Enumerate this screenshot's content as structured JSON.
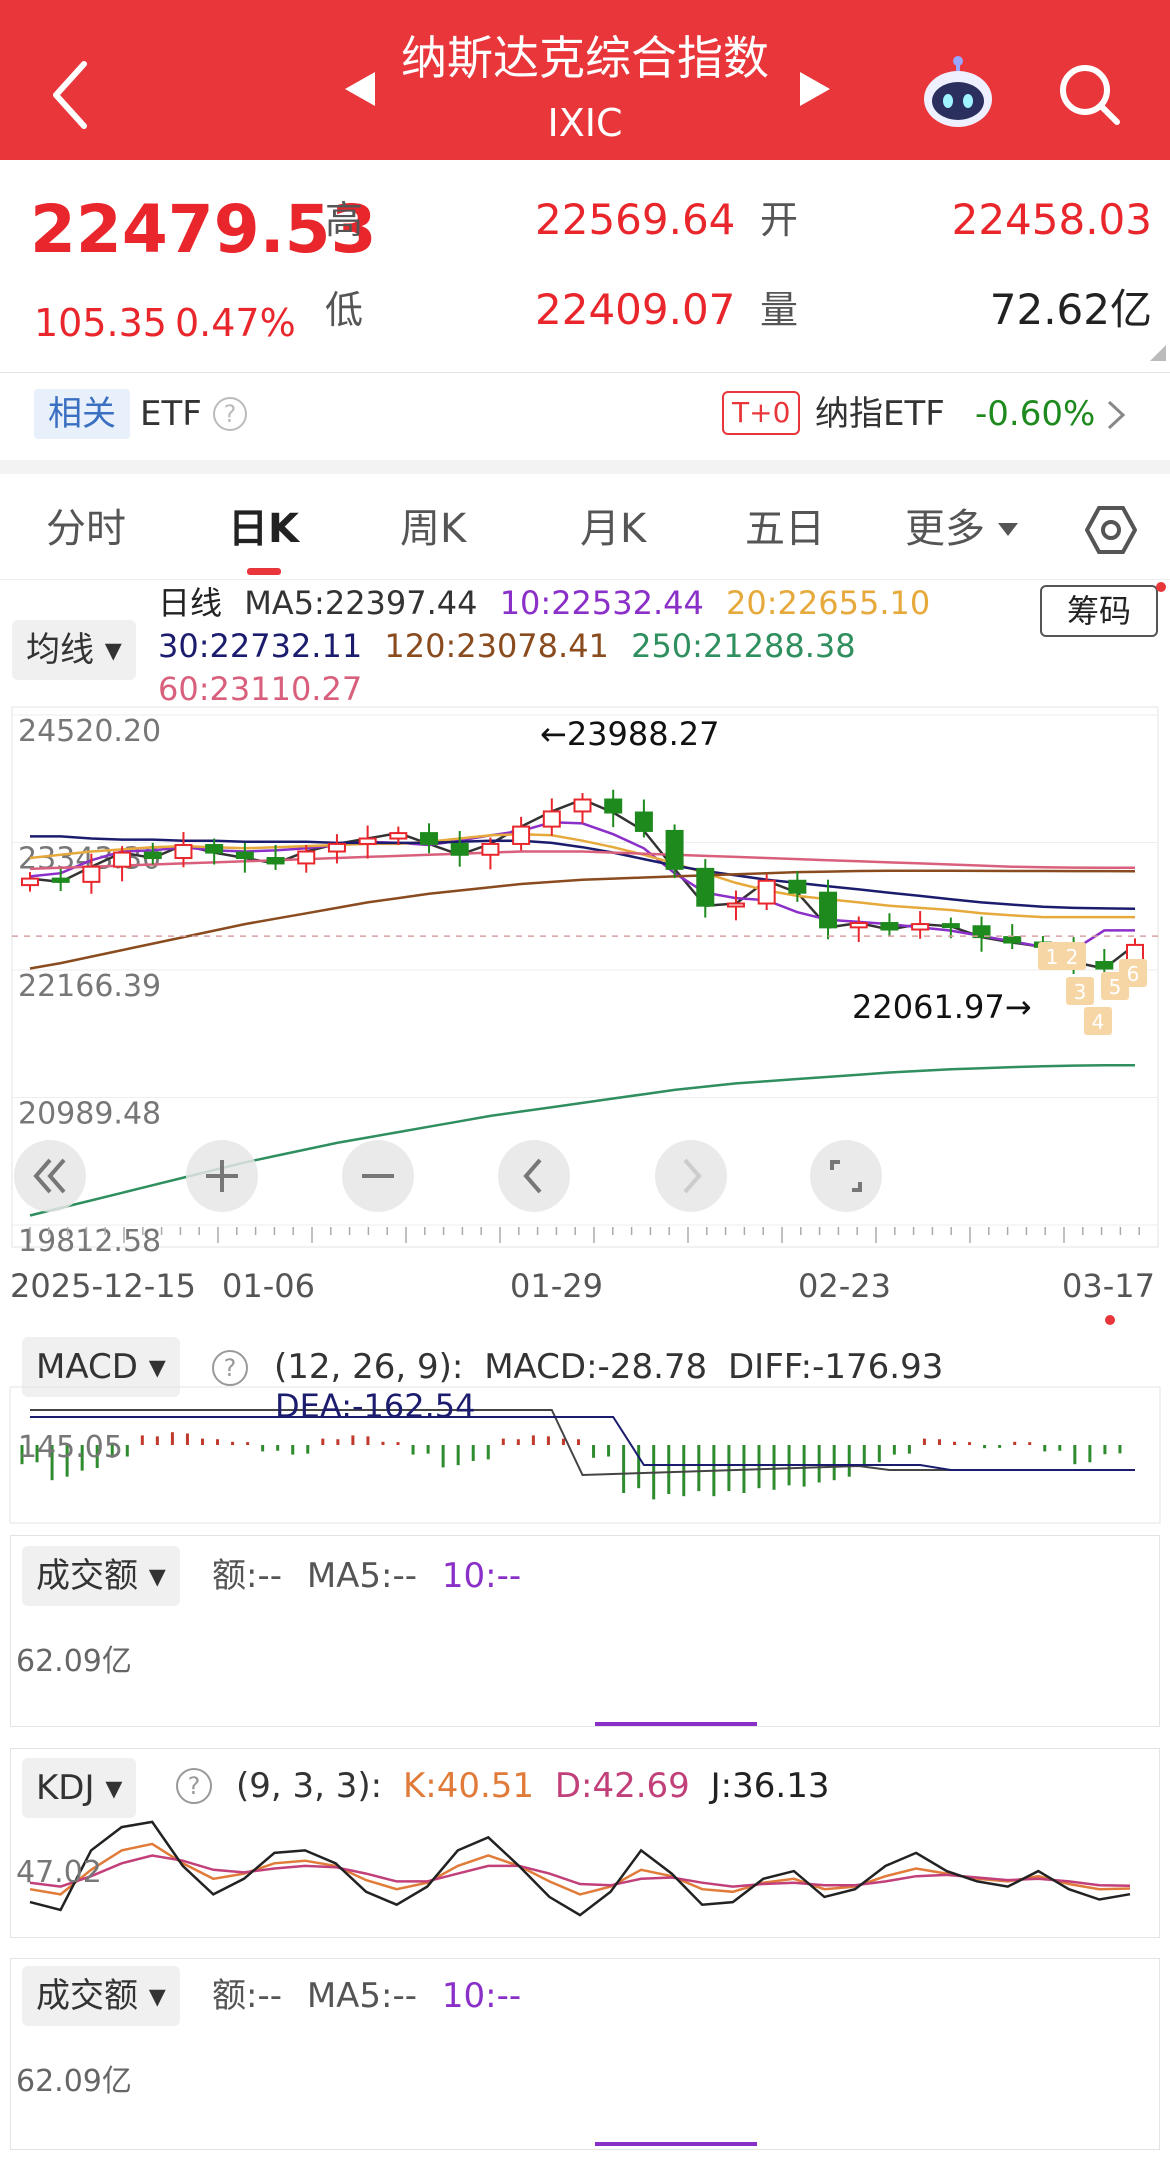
{
  "header": {
    "title": "纳斯达克综合指数",
    "subtitle": "IXIC",
    "back_icon": "chevron-left-icon",
    "robot_icon": "robot-icon",
    "search_icon": "search-icon"
  },
  "quote": {
    "price": "22479.53",
    "change": "105.35",
    "change_pct": "0.47%",
    "high_label": "高",
    "high": "22569.64",
    "open_label": "开",
    "open": "22458.03",
    "low_label": "低",
    "low": "22409.07",
    "volume_label": "量",
    "volume": "72.62亿"
  },
  "related": {
    "tag": "相关",
    "etf_label": "ETF",
    "t0_badge": "T+0",
    "fund_name": "纳指ETF",
    "fund_change": "-0.60%"
  },
  "tabs": [
    "分时",
    "日K",
    "周K",
    "月K",
    "五日",
    "更多"
  ],
  "active_tab": "日K",
  "ma_legend": {
    "dropdown": "均线",
    "title": "日线",
    "ma5": "MA5:22397.44",
    "ma10": "10:22532.44",
    "ma20": "20:22655.10",
    "ma30": "30:22732.11",
    "ma120": "120:23078.41",
    "ma250": "250:21288.38",
    "ma60": "60:23110.27",
    "chips_button": "筹码"
  },
  "colors": {
    "up": "#e8262b",
    "down": "#1e8a1e",
    "ma5": "#333333",
    "ma10": "#8b2fc9",
    "ma20": "#e6a93c",
    "ma30": "#1c1c6e",
    "ma60": "#d9607c",
    "ma120": "#8a4b1f",
    "ma250": "#2f8f5e"
  },
  "chart_data": [
    {
      "type": "candlestick",
      "y_labels": [
        "24520.20",
        "23343.30",
        "22166.39",
        "20989.48",
        "19812.58"
      ],
      "ylim": [
        19812.58,
        24520.2
      ],
      "x_labels": [
        "2025-12-15",
        "01-06",
        "01-29",
        "02-23",
        "03-17"
      ],
      "high_annotation": "←23988.27",
      "low_annotation": "22061.97→",
      "markers": [
        "1",
        "2",
        "3",
        "4",
        "5",
        "6"
      ],
      "series": [
        {
          "name": "MA5",
          "values": [
            23010,
            22980,
            23120,
            23250,
            23200,
            23320,
            23250,
            23200,
            23150,
            23260,
            23330,
            23380,
            23430,
            23330,
            23230,
            23330,
            23490,
            23630,
            23740,
            23620,
            23450,
            23100,
            22760,
            22780,
            22990,
            22880,
            22560,
            22600,
            22540,
            22590,
            22570,
            22470,
            22420,
            22380,
            22240,
            22180,
            22398
          ]
        },
        {
          "name": "MA10",
          "values": [
            23030,
            23060,
            23180,
            23260,
            23270,
            23300,
            23270,
            23260,
            23270,
            23290,
            23320,
            23350,
            23340,
            23320,
            23360,
            23410,
            23450,
            23530,
            23520,
            23420,
            23290,
            23060,
            22880,
            22830,
            22810,
            22700,
            22630,
            22610,
            22590,
            22560,
            22530,
            22480,
            22430,
            22380,
            22350,
            22532,
            22532
          ]
        },
        {
          "name": "MA20",
          "values": [
            23200,
            23230,
            23260,
            23280,
            23300,
            23310,
            23300,
            23290,
            23300,
            23310,
            23320,
            23330,
            23330,
            23350,
            23380,
            23410,
            23420,
            23410,
            23360,
            23300,
            23230,
            23150,
            23060,
            22970,
            22900,
            22850,
            22820,
            22790,
            22760,
            22740,
            22720,
            22690,
            22670,
            22655,
            22655,
            22655,
            22655
          ]
        },
        {
          "name": "MA30",
          "values": [
            23400,
            23400,
            23380,
            23370,
            23370,
            23360,
            23360,
            23350,
            23350,
            23350,
            23340,
            23340,
            23340,
            23340,
            23350,
            23360,
            23360,
            23340,
            23300,
            23250,
            23190,
            23130,
            23080,
            23040,
            23000,
            22970,
            22940,
            22910,
            22880,
            22850,
            22820,
            22790,
            22770,
            22750,
            22740,
            22735,
            22732
          ]
        },
        {
          "name": "MA60",
          "values": [
            23100,
            23110,
            23120,
            23130,
            23140,
            23150,
            23160,
            23170,
            23180,
            23190,
            23200,
            23210,
            23220,
            23230,
            23240,
            23250,
            23260,
            23260,
            23260,
            23250,
            23240,
            23230,
            23220,
            23210,
            23200,
            23190,
            23180,
            23170,
            23160,
            23150,
            23140,
            23130,
            23120,
            23115,
            23112,
            23111,
            23110
          ]
        },
        {
          "name": "MA120",
          "values": [
            22180,
            22230,
            22290,
            22350,
            22410,
            22470,
            22530,
            22590,
            22640,
            22690,
            22740,
            22790,
            22830,
            22870,
            22900,
            22930,
            22960,
            22980,
            23000,
            23010,
            23020,
            23030,
            23040,
            23050,
            23060,
            23070,
            23075,
            23080,
            23082,
            23083,
            23082,
            23081,
            23080,
            23080,
            23079,
            23079,
            23078
          ]
        },
        {
          "name": "MA250",
          "values": [
            19900,
            19970,
            20040,
            20110,
            20180,
            20250,
            20320,
            20390,
            20450,
            20510,
            20570,
            20620,
            20670,
            20720,
            20770,
            20820,
            20860,
            20900,
            20940,
            20980,
            21020,
            21060,
            21090,
            21120,
            21140,
            21160,
            21180,
            21200,
            21220,
            21235,
            21250,
            21260,
            21270,
            21278,
            21284,
            21287,
            21288
          ]
        }
      ]
    },
    {
      "type": "bar",
      "name": "MACD",
      "params": "(12, 26, 9):",
      "macd": "MACD:-28.78",
      "diff": "DIFF:-176.93",
      "dea": "DEA:-162.54",
      "y_label": "145.05",
      "values": [
        -60,
        -110,
        -80,
        -40,
        30,
        40,
        20,
        10,
        -20,
        -30,
        20,
        30,
        10,
        -30,
        -70,
        -50,
        20,
        30,
        20,
        -40,
        -150,
        -170,
        -160,
        -160,
        -150,
        -140,
        -130,
        -110,
        -60,
        -30,
        20,
        10,
        -10,
        10,
        -20,
        -60,
        -29
      ]
    },
    {
      "type": "bar",
      "name": "成交额",
      "label": "额:--",
      "ma5": "MA5:--",
      "ma10": "10:--",
      "y_label": "62.09亿"
    },
    {
      "type": "line",
      "name": "KDJ",
      "params": "(9, 3, 3):",
      "k": "K:40.51",
      "d": "D:42.69",
      "j": "J:36.13",
      "y_label": "47.02",
      "series": [
        {
          "name": "K",
          "values": [
            40,
            36,
            55,
            70,
            75,
            60,
            48,
            52,
            60,
            62,
            58,
            47,
            40,
            45,
            58,
            66,
            58,
            46,
            36,
            42,
            55,
            50,
            40,
            38,
            45,
            48,
            40,
            42,
            50,
            56,
            52,
            48,
            46,
            50,
            44,
            40,
            40.51
          ]
        },
        {
          "name": "D",
          "values": [
            45,
            42,
            50,
            60,
            66,
            62,
            55,
            53,
            56,
            58,
            57,
            52,
            46,
            46,
            52,
            58,
            58,
            52,
            44,
            43,
            48,
            49,
            45,
            42,
            44,
            45,
            43,
            43,
            46,
            50,
            51,
            49,
            47,
            48,
            46,
            43,
            42.69
          ]
        },
        {
          "name": "J",
          "values": [
            30,
            24,
            70,
            88,
            92,
            58,
            36,
            48,
            68,
            70,
            60,
            38,
            28,
            42,
            70,
            80,
            58,
            34,
            20,
            38,
            70,
            52,
            28,
            30,
            48,
            54,
            34,
            40,
            58,
            68,
            54,
            46,
            42,
            54,
            40,
            32,
            36.13
          ]
        }
      ]
    },
    {
      "type": "bar",
      "name": "成交额",
      "label": "额:--",
      "ma5": "MA5:--",
      "ma10": "10:--",
      "y_label": "62.09亿"
    }
  ]
}
